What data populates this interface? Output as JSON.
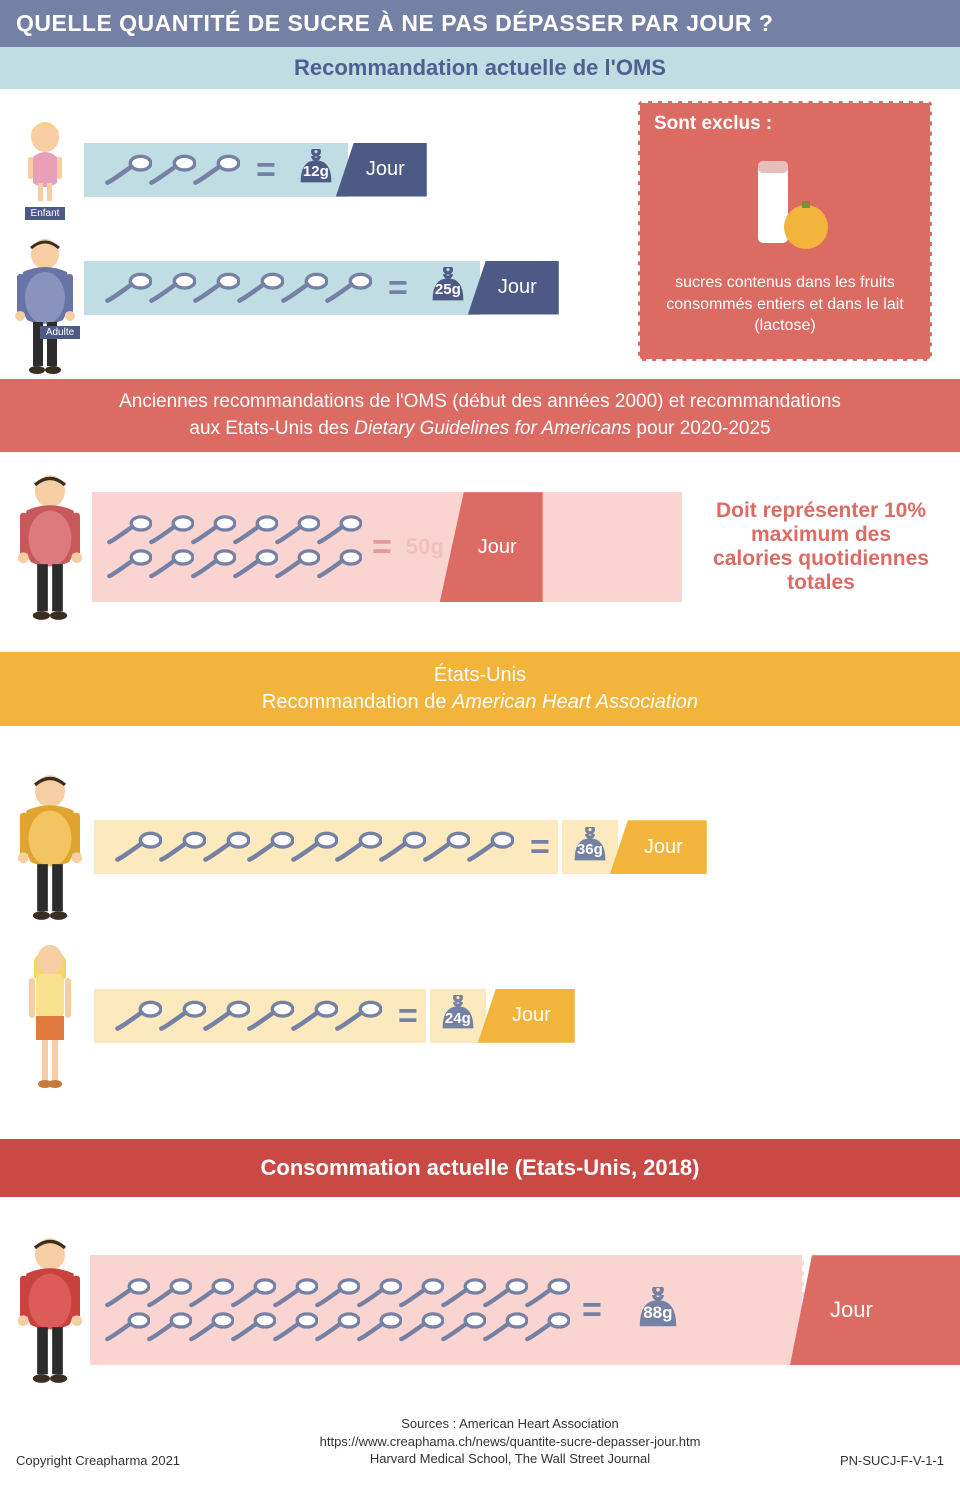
{
  "title": "QUELLE QUANTITÉ DE SUCRE À NE PAS DÉPASSER PAR JOUR ?",
  "colors": {
    "title_bg": "#7581a4",
    "subhead_bg": "#c0dde4",
    "subhead_text": "#4f5f8f",
    "navy": "#4d5a85",
    "spoon": "#7581a4",
    "red": "#db6b63",
    "darkred": "#cb4945",
    "yellow": "#f2b43a",
    "yellow_light": "#fce9be",
    "pink_light": "#f9d4d1",
    "mint_bar": "#c0dde4"
  },
  "oms": {
    "heading": "Recommandation actuelle de l'OMS",
    "child": {
      "label": "Enfant",
      "spoons": 3,
      "grams": "12g",
      "per": "Jour"
    },
    "adult": {
      "label": "Adulte",
      "spoons": 6,
      "grams": "25g",
      "per": "Jour"
    }
  },
  "excluded": {
    "heading": "Sont exclus :",
    "text": "sucres contenus dans les fruits consommés entiers et dans le lait (lactose)"
  },
  "old": {
    "banner_line1": "Anciennes recommandations de l'OMS (début des années 2000) et recommandations",
    "banner_line2_pre": "aux Etats-Unis des ",
    "banner_line2_it": "Dietary Guidelines for Americans",
    "banner_line2_post": " pour 2020-2025",
    "spoons": 12,
    "grams": "50g",
    "per": "Jour",
    "note": "Doit représenter 10% maximum des calories quotidiennes totales"
  },
  "aha": {
    "heading_line1": "États-Unis",
    "heading_line2_pre": "Recommandation de ",
    "heading_line2_it": "American Heart Association",
    "man": {
      "spoons": 9,
      "grams": "36g",
      "per": "Jour"
    },
    "woman": {
      "spoons": 6,
      "grams": "24g",
      "per": "Jour"
    }
  },
  "consumption": {
    "heading": "Consommation actuelle (Etats-Unis, 2018)",
    "spoons": 22,
    "grams": "88g",
    "per": "Jour"
  },
  "footer": {
    "copyright": "Copyright Creapharma 2021",
    "sources_label": "Sources : American Heart Association",
    "url": "https://www.creaphama.ch/news/quantite-sucre-depasser-jour.htm",
    "credits": "Harvard Medical School, The Wall Street Journal",
    "code": "PN-SUCJ-F-V-1-1"
  }
}
